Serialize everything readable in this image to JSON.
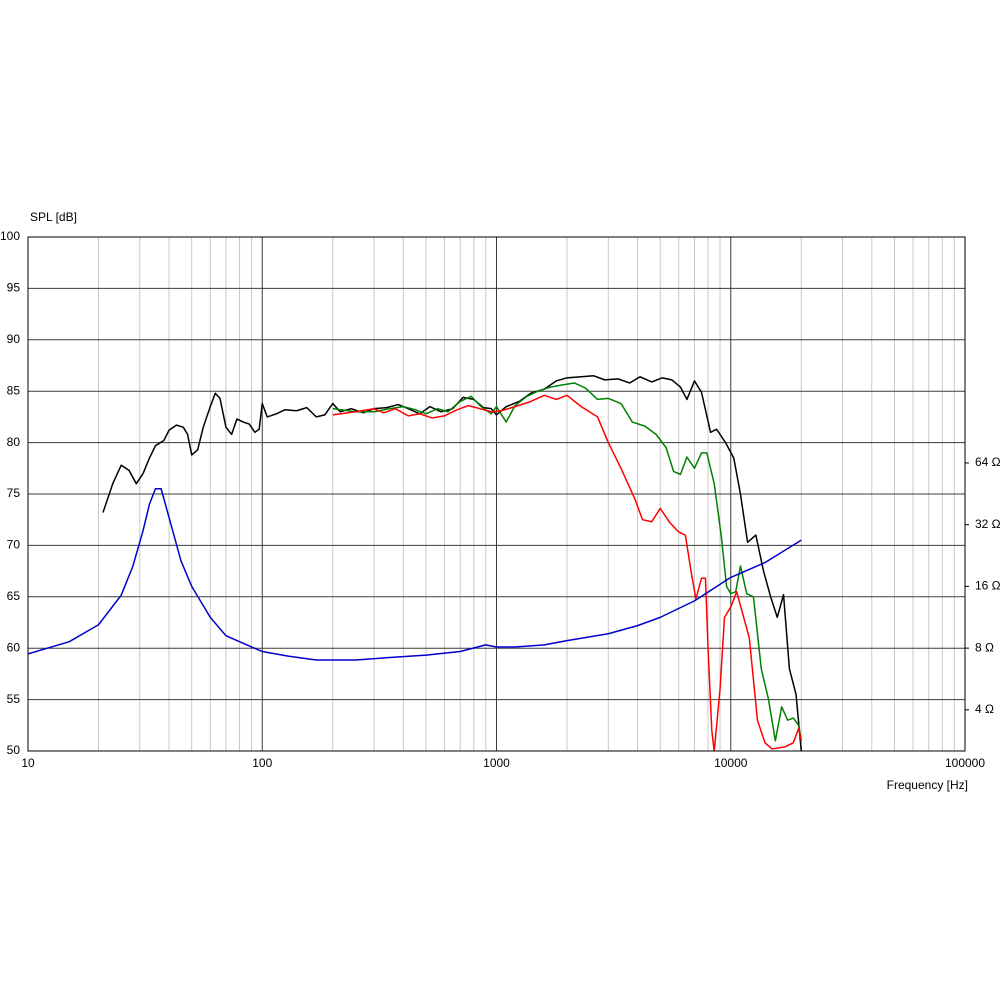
{
  "chart_data": {
    "type": "line",
    "y_label": "SPL [dB]",
    "x_label": "Frequency [Hz]",
    "xscale": "log",
    "xlim": [
      10,
      100000
    ],
    "xticks": [
      10,
      100,
      1000,
      10000,
      100000
    ],
    "ylim": [
      50,
      100
    ],
    "yticks": [
      50,
      55,
      60,
      65,
      70,
      75,
      80,
      85,
      90,
      95,
      100
    ],
    "y2scale": "log",
    "y2lim": [
      2.52,
      809
    ],
    "y2ticks": [
      {
        "value": 4,
        "label": "4 Ω"
      },
      {
        "value": 8,
        "label": "8 Ω"
      },
      {
        "value": 16,
        "label": "16 Ω"
      },
      {
        "value": 32,
        "label": "32 Ω"
      },
      {
        "value": 64,
        "label": "64 Ω"
      }
    ],
    "grid": true,
    "series": [
      {
        "color": "#000000",
        "x": [
          20.9,
          23,
          25,
          27,
          29,
          31,
          33,
          35,
          38,
          40,
          43,
          46,
          48,
          50,
          53,
          56,
          60,
          63,
          66,
          70,
          74,
          78,
          83,
          88,
          93,
          97,
          100,
          105,
          115,
          125,
          140,
          155,
          170,
          185,
          200,
          215,
          240,
          270,
          300,
          340,
          380,
          420,
          470,
          520,
          580,
          650,
          720,
          800,
          880,
          950,
          1000,
          1100,
          1250,
          1400,
          1600,
          1800,
          2000,
          2300,
          2600,
          2900,
          3300,
          3700,
          4100,
          4600,
          5100,
          5600,
          6100,
          6500,
          7000,
          7500,
          8200,
          8700,
          9500,
          10300,
          11000,
          11800,
          12800,
          13800,
          14800,
          15800,
          16800,
          17800,
          19000,
          20000
        ],
        "values": [
          73.2,
          76,
          77.8,
          77.3,
          76,
          77,
          78.5,
          79.7,
          80.2,
          81.2,
          81.7,
          81.5,
          80.8,
          78.8,
          79.3,
          81.5,
          83.5,
          84.8,
          84.3,
          81.5,
          80.8,
          82.3,
          82,
          81.8,
          81,
          81.3,
          83.8,
          82.5,
          82.8,
          83.2,
          83.1,
          83.4,
          82.5,
          82.7,
          83.8,
          83,
          83.3,
          82.9,
          83.3,
          83.4,
          83.7,
          83.3,
          82.8,
          83.5,
          83,
          83.3,
          84.4,
          84.2,
          83.4,
          83.3,
          82.7,
          83.5,
          84,
          84.8,
          85.2,
          86,
          86.3,
          86.4,
          86.5,
          86.1,
          86.2,
          85.8,
          86.4,
          85.9,
          86.3,
          86.1,
          85.4,
          84.2,
          86,
          84.9,
          81,
          81.3,
          80,
          78.5,
          75,
          70.3,
          71,
          67.5,
          65,
          63,
          65.2,
          58,
          55.5,
          50
        ]
      },
      {
        "color": "#008000",
        "x": [
          200,
          250,
          300,
          350,
          400,
          450,
          500,
          560,
          620,
          700,
          780,
          860,
          950,
          1000,
          1100,
          1200,
          1350,
          1500,
          1700,
          1900,
          2150,
          2400,
          2700,
          3000,
          3400,
          3800,
          4300,
          4800,
          5300,
          5700,
          6100,
          6500,
          7000,
          7500,
          7900,
          8500,
          9100,
          9600,
          10000,
          10500,
          11000,
          11700,
          12500,
          13500,
          14500,
          15500,
          16500,
          17500,
          18500,
          19500,
          20000
        ],
        "values": [
          83.3,
          83,
          83,
          83.3,
          83.5,
          83.2,
          82.8,
          83.3,
          83,
          84,
          84.5,
          83.5,
          82.8,
          83.5,
          82,
          83.6,
          84.5,
          85,
          85.4,
          85.6,
          85.8,
          85.3,
          84.2,
          84.3,
          83.8,
          82,
          81.6,
          80.8,
          79.5,
          77.2,
          76.9,
          78.6,
          77.5,
          79,
          79,
          76,
          71,
          66,
          65.3,
          65.5,
          68,
          65.3,
          65,
          58,
          55,
          51,
          54.3,
          53,
          53.2,
          52.5,
          51
        ]
      },
      {
        "color": "#ff0000",
        "x": [
          200,
          250,
          300,
          330,
          370,
          420,
          470,
          530,
          600,
          680,
          760,
          850,
          950,
          1050,
          1200,
          1400,
          1600,
          1800,
          2000,
          2300,
          2700,
          3000,
          3400,
          3900,
          4200,
          4600,
          5000,
          5500,
          6000,
          6400,
          6800,
          7100,
          7500,
          7800,
          8000,
          8300,
          8500,
          9000,
          9400,
          10000,
          10600,
          11200,
          12000,
          13000,
          14000,
          15000,
          17000,
          18500,
          19500,
          20000
        ],
        "values": [
          82.7,
          83,
          83.3,
          82.9,
          83.3,
          82.6,
          82.8,
          82.4,
          82.6,
          83.2,
          83.6,
          83.3,
          83,
          83.1,
          83.5,
          84,
          84.6,
          84.2,
          84.6,
          83.5,
          82.5,
          80,
          77.5,
          74.5,
          72.5,
          72.3,
          73.6,
          72.2,
          71.3,
          71,
          67.2,
          64.8,
          66.8,
          66.8,
          60,
          52,
          50,
          56,
          63,
          64,
          65.5,
          63.5,
          61,
          53,
          50.8,
          50.2,
          50.4,
          50.8,
          52.2,
          51
        ]
      },
      {
        "color": "#0000cc",
        "axis": "y2",
        "x": [
          10,
          15,
          20,
          25,
          28,
          31,
          33,
          35,
          37,
          40,
          45,
          50,
          60,
          70,
          80,
          100,
          130,
          170,
          250,
          350,
          500,
          700,
          900,
          1000,
          1200,
          1600,
          2000,
          3000,
          4000,
          5000,
          7000,
          10000,
          14000,
          20000
        ],
        "values": [
          7.5,
          8.6,
          10.4,
          14.5,
          20,
          30,
          40.3,
          47.9,
          47.9,
          34.7,
          21.3,
          16,
          11.3,
          9.2,
          8.6,
          7.7,
          7.3,
          7.0,
          7.0,
          7.2,
          7.4,
          7.7,
          8.3,
          8.1,
          8.1,
          8.3,
          8.7,
          9.4,
          10.3,
          11.3,
          13.6,
          17.7,
          20.9,
          26.9
        ]
      }
    ]
  }
}
